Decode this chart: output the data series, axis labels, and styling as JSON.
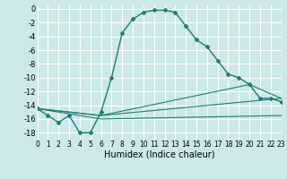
{
  "bg_color": "#cce8e8",
  "grid_color": "#ffffff",
  "line_color": "#1e7d72",
  "xlabel": "Humidex (Indice chaleur)",
  "xlim": [
    0,
    23
  ],
  "ylim": [
    -19,
    0.5
  ],
  "yticks": [
    0,
    -2,
    -4,
    -6,
    -8,
    -10,
    -12,
    -14,
    -16,
    -18
  ],
  "xticks": [
    0,
    1,
    2,
    3,
    4,
    5,
    6,
    7,
    8,
    9,
    10,
    11,
    12,
    13,
    14,
    15,
    16,
    17,
    18,
    19,
    20,
    21,
    22,
    23
  ],
  "main_x": [
    0,
    1,
    2,
    3,
    4,
    5,
    6,
    7,
    8,
    9,
    10,
    11,
    12,
    13,
    14,
    15,
    16,
    17,
    18,
    19,
    20,
    21,
    22,
    23
  ],
  "main_y": [
    -14.5,
    -15.5,
    -16.5,
    -15.5,
    -18.0,
    -18.0,
    -15.0,
    -10.0,
    -3.5,
    -1.5,
    -0.5,
    -0.2,
    -0.2,
    -0.5,
    -2.5,
    -4.5,
    -5.5,
    -7.5,
    -9.5,
    -10.0,
    -11.0,
    -13.0,
    -13.0,
    -13.5
  ],
  "line2_x": [
    0,
    6,
    23
  ],
  "line2_y": [
    -14.5,
    -15.5,
    -13.0
  ],
  "line3_x": [
    0,
    6,
    20,
    23
  ],
  "line3_y": [
    -14.5,
    -15.5,
    -11.0,
    -13.0
  ],
  "line4_x": [
    0,
    6,
    23
  ],
  "line4_y": [
    -14.5,
    -16.0,
    -15.5
  ]
}
